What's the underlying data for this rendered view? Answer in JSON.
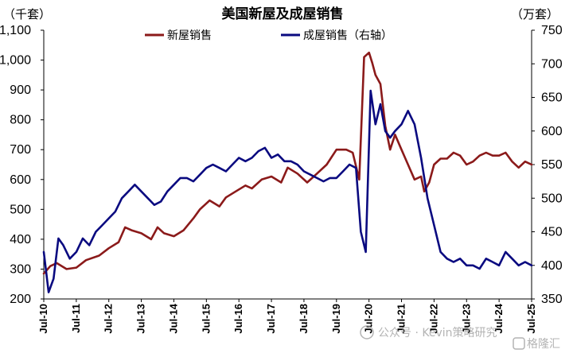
{
  "chart_data": {
    "type": "line",
    "title": "美国新屋及成屋销售",
    "left_unit": "（千套）",
    "right_unit": "（万套）",
    "ylim_left": [
      200,
      1100
    ],
    "yticks_left": [
      "200",
      "300",
      "400",
      "500",
      "600",
      "700",
      "800",
      "900",
      "1,000",
      "1,100"
    ],
    "ylim_right": [
      350,
      750
    ],
    "yticks_right": [
      "350",
      "400",
      "450",
      "500",
      "550",
      "600",
      "650",
      "700",
      "750"
    ],
    "x_ticks": [
      "Jul-10",
      "Jul-11",
      "Jul-12",
      "Jul-13",
      "Jul-14",
      "Jul-15",
      "Jul-16",
      "Jul-17",
      "Jul-18",
      "Jul-19",
      "Jul-20",
      "Jul-21",
      "Jul-22",
      "Jul-23",
      "Jul-24",
      "Jul-25"
    ],
    "series": [
      {
        "name": "新屋销售",
        "axis": "left",
        "color": "#8B1A1A",
        "x": [
          2010.5,
          2010.7,
          2010.9,
          2011.2,
          2011.5,
          2011.8,
          2012.2,
          2012.5,
          2012.8,
          2013.0,
          2013.2,
          2013.5,
          2013.8,
          2014.0,
          2014.2,
          2014.5,
          2014.8,
          2015.1,
          2015.3,
          2015.6,
          2015.9,
          2016.1,
          2016.4,
          2016.7,
          2016.9,
          2017.2,
          2017.5,
          2017.8,
          2018.0,
          2018.3,
          2018.6,
          2018.9,
          2019.2,
          2019.5,
          2019.8,
          2020.0,
          2020.2,
          2020.35,
          2020.5,
          2020.6,
          2020.7,
          2020.85,
          2021.0,
          2021.15,
          2021.3,
          2021.5,
          2021.7,
          2021.9,
          2022.1,
          2022.2,
          2022.35,
          2022.5,
          2022.7,
          2022.9,
          2023.1,
          2023.3,
          2023.5,
          2023.7,
          2023.9,
          2024.1,
          2024.3,
          2024.5,
          2024.7,
          2024.9,
          2025.1,
          2025.3,
          2025.5
        ],
        "values": [
          285,
          310,
          320,
          300,
          305,
          330,
          345,
          370,
          390,
          440,
          430,
          420,
          400,
          440,
          420,
          410,
          430,
          470,
          500,
          530,
          510,
          540,
          560,
          580,
          570,
          600,
          610,
          590,
          640,
          620,
          590,
          620,
          650,
          700,
          700,
          690,
          600,
          1010,
          1025,
          990,
          950,
          920,
          780,
          700,
          750,
          700,
          650,
          600,
          610,
          560,
          590,
          650,
          670,
          670,
          690,
          680,
          650,
          660,
          680,
          690,
          680,
          680,
          690,
          660,
          640,
          660,
          650
        ]
      },
      {
        "name": "成屋销售（右轴）",
        "axis": "right",
        "color": "#0A0A80",
        "x": [
          2010.5,
          2010.65,
          2010.8,
          2010.95,
          2011.1,
          2011.3,
          2011.5,
          2011.7,
          2011.9,
          2012.1,
          2012.3,
          2012.5,
          2012.7,
          2012.9,
          2013.1,
          2013.3,
          2013.5,
          2013.7,
          2013.9,
          2014.1,
          2014.3,
          2014.5,
          2014.7,
          2014.9,
          2015.1,
          2015.3,
          2015.5,
          2015.7,
          2015.9,
          2016.1,
          2016.3,
          2016.5,
          2016.7,
          2016.9,
          2017.1,
          2017.3,
          2017.5,
          2017.7,
          2017.9,
          2018.1,
          2018.3,
          2018.5,
          2018.7,
          2018.9,
          2019.1,
          2019.3,
          2019.5,
          2019.7,
          2019.9,
          2020.1,
          2020.25,
          2020.4,
          2020.55,
          2020.7,
          2020.85,
          2021.0,
          2021.15,
          2021.3,
          2021.5,
          2021.7,
          2021.9,
          2022.1,
          2022.3,
          2022.5,
          2022.7,
          2022.9,
          2023.1,
          2023.3,
          2023.5,
          2023.7,
          2023.9,
          2024.1,
          2024.3,
          2024.5,
          2024.7,
          2024.9,
          2025.1,
          2025.3,
          2025.5
        ],
        "values": [
          420,
          360,
          380,
          440,
          430,
          410,
          420,
          440,
          430,
          450,
          460,
          470,
          480,
          500,
          510,
          520,
          510,
          500,
          490,
          495,
          510,
          520,
          530,
          530,
          525,
          535,
          545,
          550,
          545,
          540,
          550,
          560,
          555,
          560,
          570,
          575,
          560,
          565,
          555,
          555,
          550,
          540,
          535,
          530,
          525,
          530,
          530,
          540,
          550,
          545,
          450,
          420,
          660,
          610,
          640,
          600,
          590,
          600,
          610,
          630,
          610,
          560,
          500,
          460,
          420,
          410,
          405,
          410,
          400,
          400,
          395,
          410,
          405,
          400,
          420,
          410,
          400,
          405,
          400
        ]
      }
    ]
  },
  "legend": {
    "new_home": "新屋销售",
    "existing_home": "成屋销售（右轴）"
  },
  "watermark": {
    "text": "公众号 · Kevin策略研究",
    "logo_text": "格隆汇"
  }
}
